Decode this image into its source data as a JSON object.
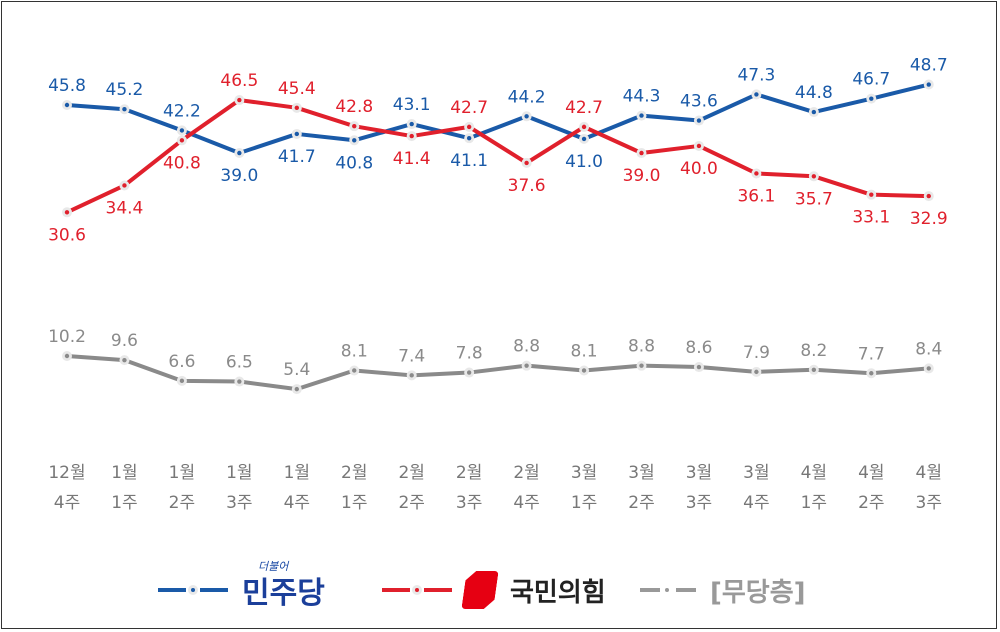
{
  "chart_data": {
    "type": "line",
    "categories": [
      [
        "12월",
        "4주"
      ],
      [
        "1월",
        "1주"
      ],
      [
        "1월",
        "2주"
      ],
      [
        "1월",
        "3주"
      ],
      [
        "1월",
        "4주"
      ],
      [
        "2월",
        "1주"
      ],
      [
        "2월",
        "2주"
      ],
      [
        "2월",
        "3주"
      ],
      [
        "2월",
        "4주"
      ],
      [
        "3월",
        "1주"
      ],
      [
        "3월",
        "2주"
      ],
      [
        "3월",
        "3주"
      ],
      [
        "3월",
        "4주"
      ],
      [
        "4월",
        "1주"
      ],
      [
        "4월",
        "2주"
      ],
      [
        "4월",
        "3주"
      ]
    ],
    "series": [
      {
        "name": "더불어민주당",
        "color": "#1a5aa8",
        "values": [
          45.8,
          45.2,
          42.2,
          39.0,
          41.7,
          40.8,
          43.1,
          41.1,
          44.2,
          41.0,
          44.3,
          43.6,
          47.3,
          44.8,
          46.7,
          48.7
        ]
      },
      {
        "name": "국민의힘",
        "color": "#e0202c",
        "values": [
          30.6,
          34.4,
          40.8,
          46.5,
          45.4,
          42.8,
          41.4,
          42.7,
          37.6,
          42.7,
          39.0,
          40.0,
          36.1,
          35.7,
          33.1,
          32.9
        ]
      },
      {
        "name": "[무당층]",
        "color": "#8a8a8a",
        "values": [
          10.2,
          9.6,
          6.6,
          6.5,
          5.4,
          8.1,
          7.4,
          7.8,
          8.8,
          8.1,
          8.8,
          8.6,
          7.9,
          8.2,
          7.7,
          8.4
        ]
      }
    ],
    "axes_visible": false,
    "grid": false,
    "legend_position": "bottom"
  },
  "legend": {
    "dem_small": "더불어",
    "dem": "민주당",
    "ppp": "국민의힘",
    "none": "[무당층]"
  }
}
